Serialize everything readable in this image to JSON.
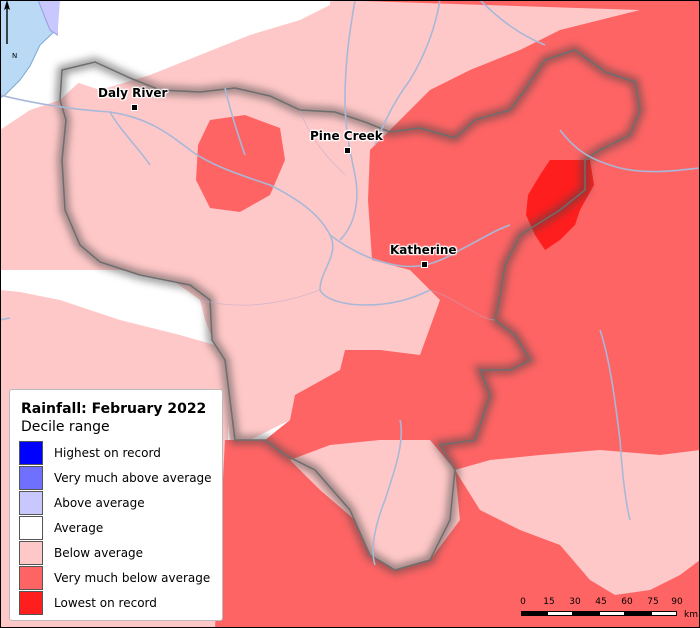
{
  "legend": {
    "title": "Rainfall: February 2022",
    "subtitle": "Decile range",
    "items": [
      {
        "label": "Highest on record",
        "color": "#0000ff"
      },
      {
        "label": "Very much above average",
        "color": "#7070ff"
      },
      {
        "label": "Above average",
        "color": "#c8c8ff"
      },
      {
        "label": "Average",
        "color": "#ffffff"
      },
      {
        "label": "Below average",
        "color": "#ffc8c8"
      },
      {
        "label": "Very much below average",
        "color": "#ff6464"
      },
      {
        "label": "Lowest on record",
        "color": "#ff1e1e"
      }
    ]
  },
  "towns": [
    {
      "name": "Daly River"
    },
    {
      "name": "Pine Creek"
    },
    {
      "name": "Katherine"
    }
  ],
  "north_arrow": {
    "letter": "N"
  },
  "scale": {
    "ticks": [
      "0",
      "15",
      "30",
      "45",
      "60",
      "75",
      "90"
    ],
    "unit": "km"
  },
  "colors": {
    "water": "#b9d9f5",
    "river": "#a8b8d8",
    "below_average": "#ffc8c8",
    "very_much_below": "#ff6464",
    "lowest": "#ff1e1e",
    "above_average": "#c8c8ff"
  }
}
